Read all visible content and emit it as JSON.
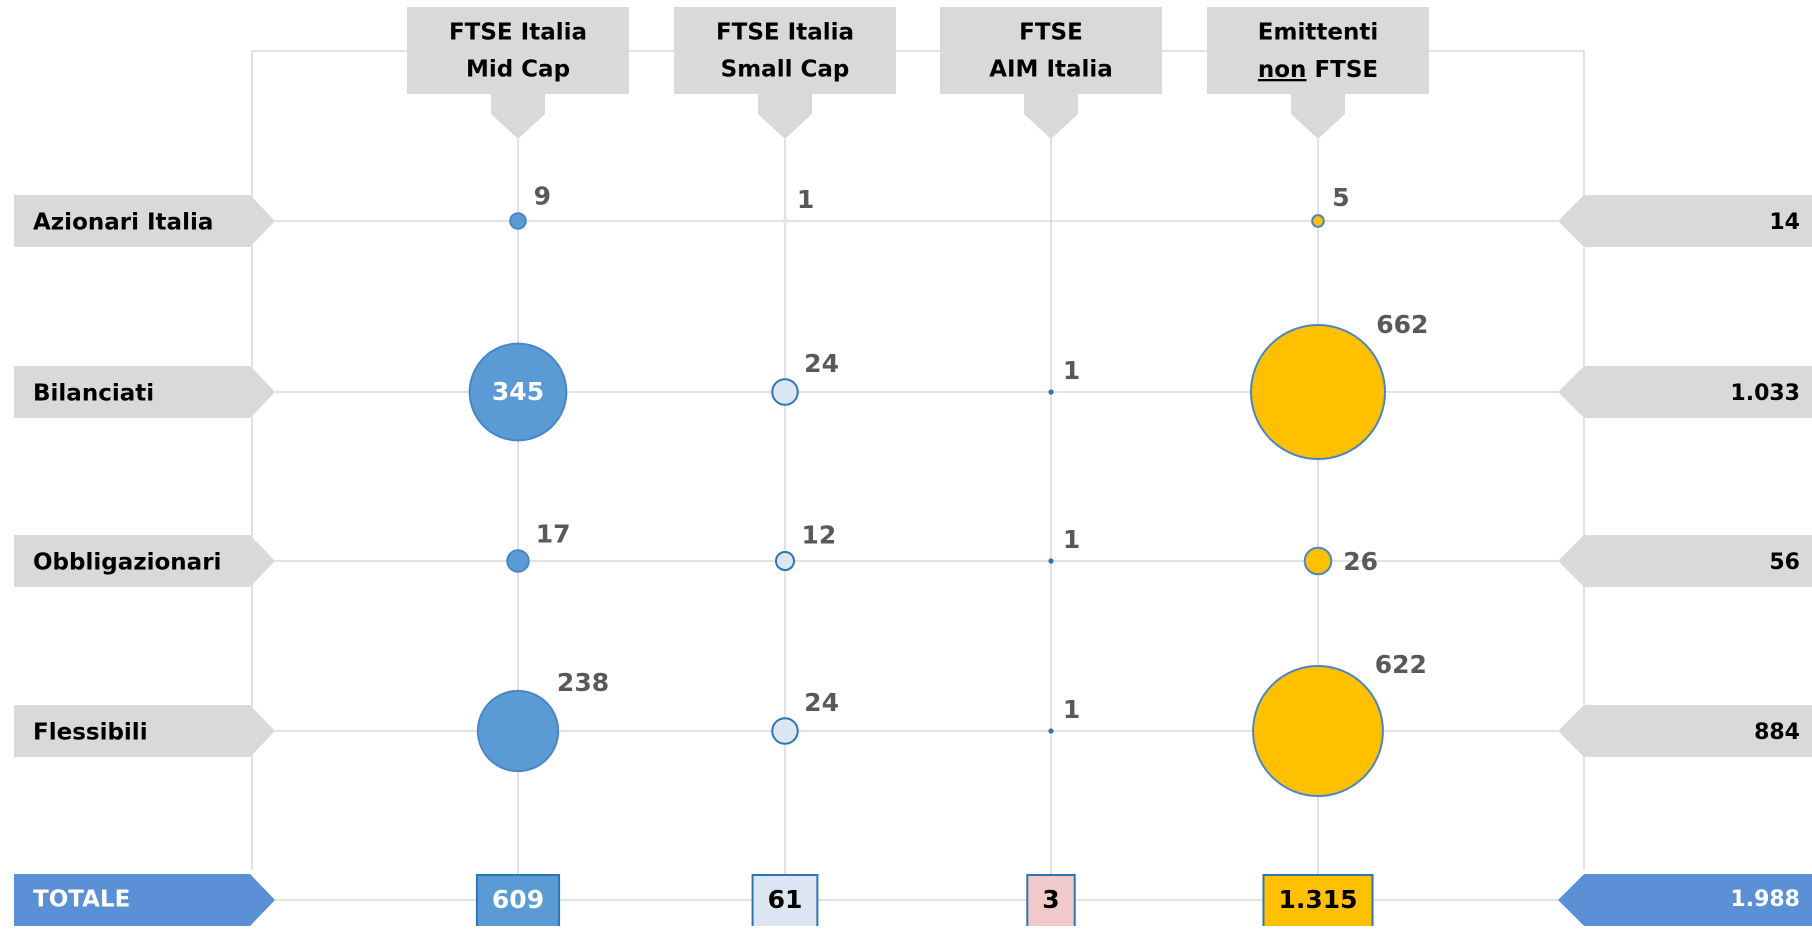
{
  "chart_data": {
    "type": "bubble-matrix",
    "rows": [
      "Azionari Italia",
      "Bilanciati",
      "Obbligazionari",
      "Flessibili"
    ],
    "columns": [
      {
        "label": [
          "FTSE Italia",
          "Mid Cap"
        ],
        "color": "#5b9bd5",
        "stroke": "#4a86c5",
        "values": [
          9,
          345,
          17,
          238
        ],
        "total": 609,
        "total_color": "#5b9bd5",
        "total_text_color": "#ffffff"
      },
      {
        "label": [
          "FTSE Italia",
          "Small Cap"
        ],
        "color": "#dce6f2",
        "stroke": "#2e75b6",
        "values": [
          1,
          24,
          12,
          24
        ],
        "total": 61,
        "total_color": "#dce6f2",
        "total_text_color": "#000000"
      },
      {
        "label": [
          "FTSE",
          "AIM Italia"
        ],
        "color": "#2e75b6",
        "stroke": "#2e75b6",
        "values": [
          null,
          1,
          1,
          1
        ],
        "total": 3,
        "total_color": "#f2c9c9",
        "total_text_color": "#000000"
      },
      {
        "label": [
          "Emittenti",
          [
            {
              "text": "non",
              "underline": true
            },
            {
              "text": " FTSE"
            }
          ]
        ],
        "color": "#ffc000",
        "stroke": "#4a86c5",
        "values": [
          5,
          662,
          26,
          622
        ],
        "total": 1315,
        "total_label": "1.315",
        "total_color": "#ffc000",
        "total_text_color": "#000000"
      }
    ],
    "row_totals": [
      14,
      1033,
      56,
      884
    ],
    "row_total_labels": [
      "14",
      "1.033",
      "56",
      "884"
    ],
    "total_title": "TOTALE",
    "grand_total": 1988,
    "grand_total_label": "1.988"
  }
}
